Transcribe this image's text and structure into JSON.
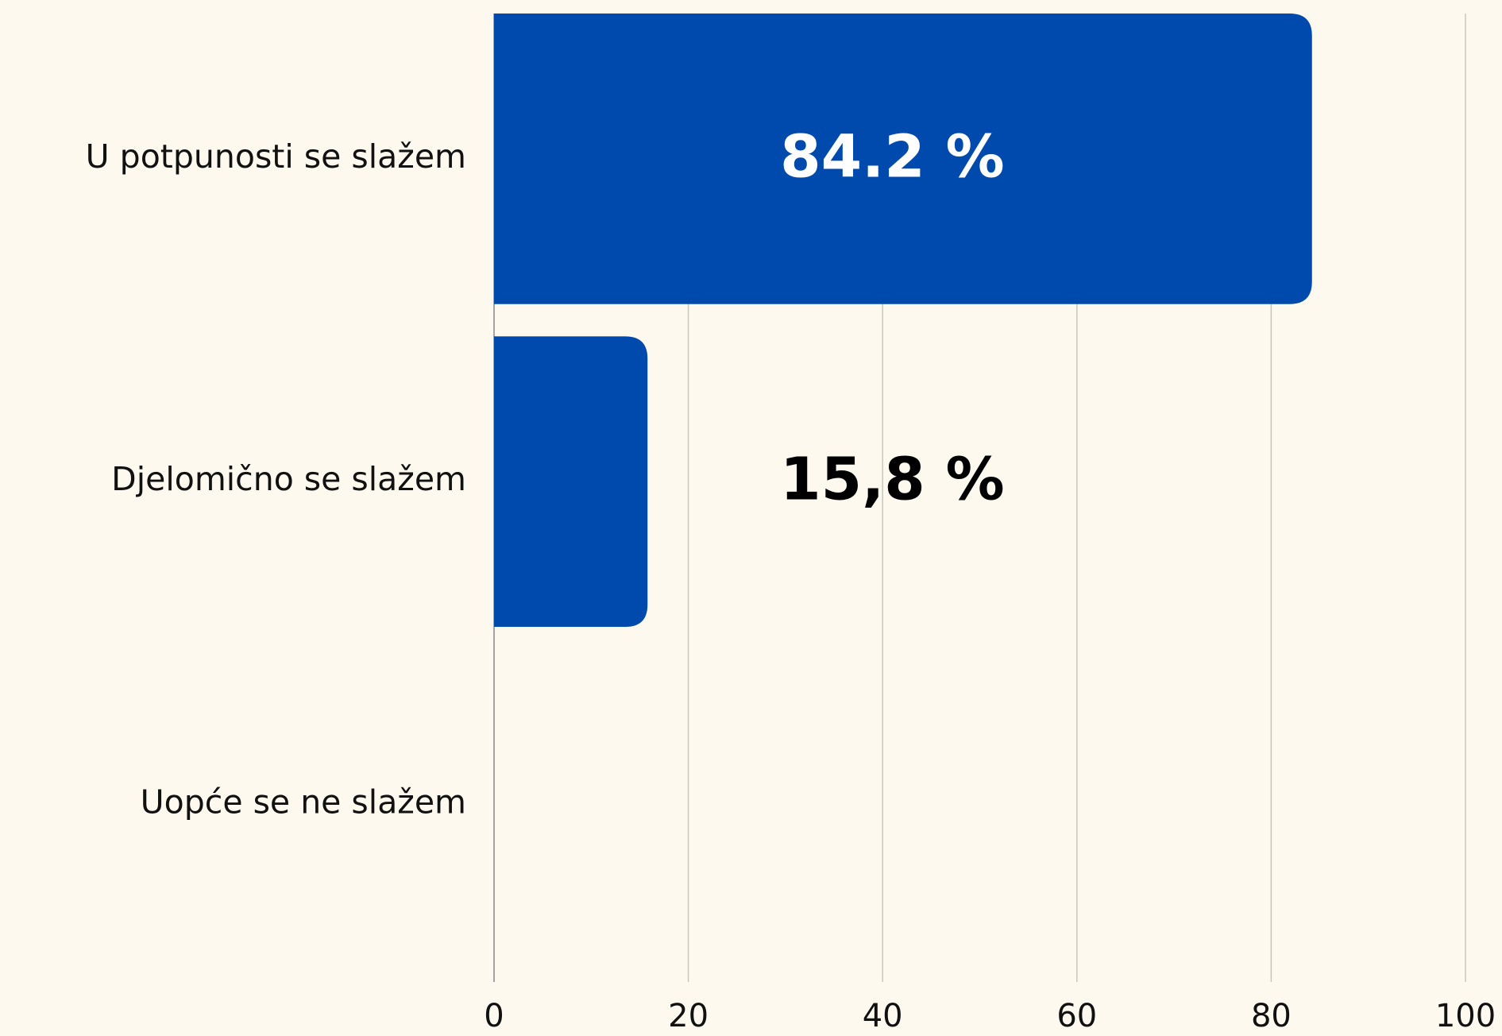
{
  "chart_data": {
    "type": "bar",
    "orientation": "horizontal",
    "categories": [
      "U potpunosti se slažem",
      "Djelomično se slažem",
      "Uopće se ne slažem"
    ],
    "values": [
      84.2,
      15.8,
      0
    ],
    "value_labels": [
      "84.2 %",
      "15,8 %",
      null
    ],
    "color": "#004aad",
    "xlim": [
      0,
      100
    ],
    "xticks": [
      0,
      20,
      40,
      60,
      80,
      100
    ],
    "grid": true
  }
}
